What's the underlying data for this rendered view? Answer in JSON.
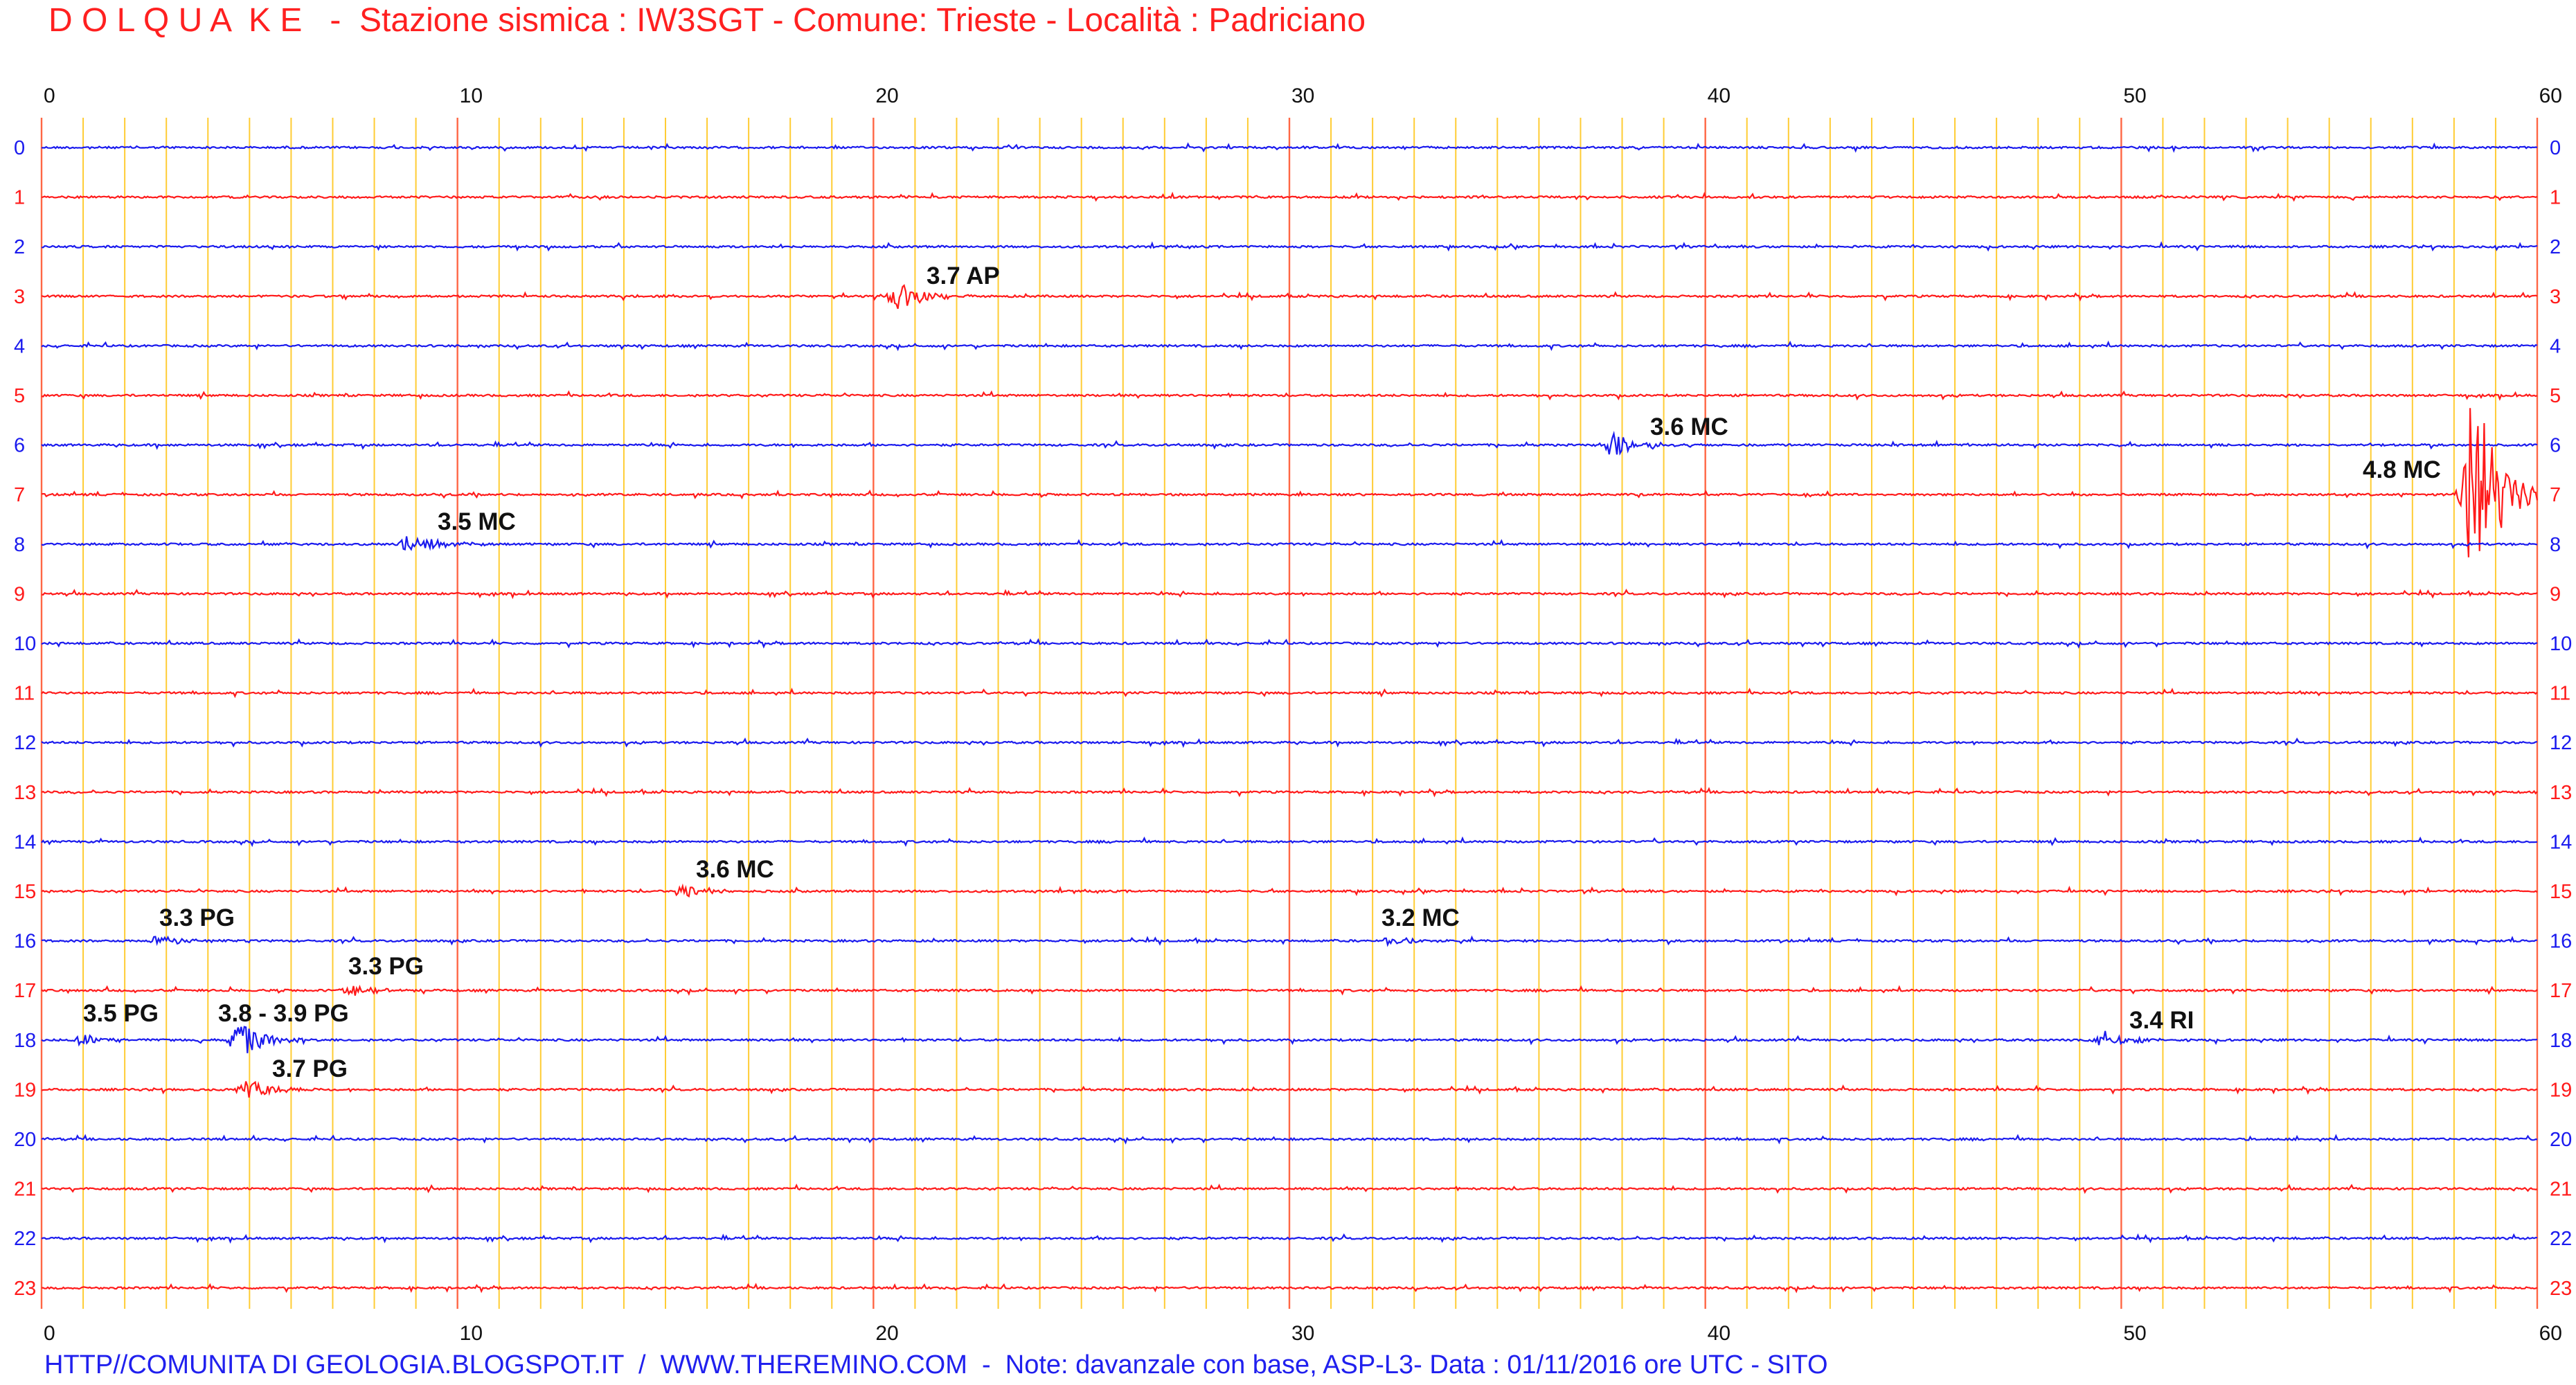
{
  "header": {
    "title": "D O L Q U A  K E   -  Stazione sismica : IW3SGT - Comune: Trieste - Località : Padriciano"
  },
  "footer": {
    "note": "HTTP//COMUNITA DI GEOLOGIA.BLOGSPOT.IT  /  WWW.THEREMINO.COM  -  Note: davanzale con base, ASP-L3- Data : 01/11/2016 ore UTC - SITO"
  },
  "colors": {
    "red_trace": "#ff1a1a",
    "blue_trace": "#1a1aee",
    "minute_grid": "#ffcc33",
    "ten_minute_grid": "#ff6644",
    "background": "#ffffff"
  },
  "chart_data": {
    "type": "line",
    "title": "",
    "xlabel": "",
    "ylabel": "",
    "xlim": [
      0,
      60
    ],
    "x_ticks": [
      0,
      10,
      20,
      30,
      40,
      50,
      60
    ],
    "hours": [
      0,
      1,
      2,
      3,
      4,
      5,
      6,
      7,
      8,
      9,
      10,
      11,
      12,
      13,
      14,
      15,
      16,
      17,
      18,
      19,
      20,
      21,
      22,
      23
    ],
    "row_colors": [
      "blue",
      "red",
      "blue",
      "red",
      "blue",
      "red",
      "blue",
      "red",
      "blue",
      "red",
      "blue",
      "red",
      "blue",
      "red",
      "blue",
      "red",
      "blue",
      "red",
      "blue",
      "red",
      "blue",
      "red",
      "blue",
      "red"
    ],
    "grid": true,
    "events": [
      {
        "label": "3.7 AP",
        "hour": 3,
        "minute": 20.6,
        "amp": 0.6
      },
      {
        "label": "3.6 MC",
        "hour": 6,
        "minute": 37.8,
        "amp": 0.45
      },
      {
        "label": "4.8 MC",
        "hour": 7,
        "minute": 58.5,
        "amp": 4.5
      },
      {
        "label": "3.5 MC",
        "hour": 8,
        "minute": 8.9,
        "amp": 0.45
      },
      {
        "label": "3.6 MC",
        "hour": 15,
        "minute": 15.5,
        "amp": 0.3
      },
      {
        "label": "3.3 PG",
        "hour": 16,
        "minute": 2.8,
        "amp": 0.25
      },
      {
        "label": "3.2 MC",
        "hour": 16,
        "minute": 32.5,
        "amp": 0.2
      },
      {
        "label": "3.3 PG",
        "hour": 17,
        "minute": 7.5,
        "amp": 0.2
      },
      {
        "label": "3.5 PG",
        "hour": 18,
        "minute": 1.0,
        "amp": 0.2
      },
      {
        "label": "3.8 - 3.9 PG",
        "hour": 18,
        "minute": 4.8,
        "amp": 0.7
      },
      {
        "label": "3.4 RI",
        "hour": 18,
        "minute": 49.6,
        "amp": 0.35
      },
      {
        "label": "3.7 PG",
        "hour": 19,
        "minute": 5.0,
        "amp": 0.45
      }
    ]
  }
}
